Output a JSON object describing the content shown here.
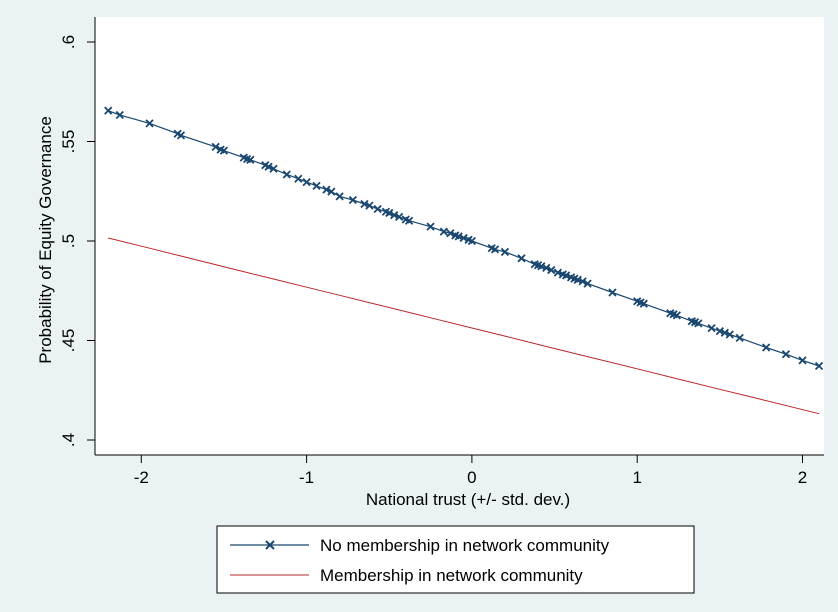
{
  "chart_data": {
    "type": "line",
    "xlabel": "National trust (+/- std. dev.)",
    "ylabel": "Probability of Equity Governance",
    "xlim": [
      -2.28,
      2.13
    ],
    "ylim": [
      0.4,
      0.6
    ],
    "x_ticks": [
      -2,
      -1,
      0,
      1,
      2
    ],
    "x_tick_labels": [
      "-2",
      "-1",
      "0",
      "1",
      "2"
    ],
    "y_ticks": [
      0.4,
      0.45,
      0.5,
      0.55,
      0.6
    ],
    "y_tick_labels": [
      ".4",
      ".45",
      ".5",
      ".55",
      ".6"
    ],
    "grid": false,
    "legend_position": "bottom",
    "series": [
      {
        "name": "No membership in network community",
        "color": "#1a476f",
        "marker": "x",
        "x": [
          -2.2,
          -2.13,
          -1.95,
          -1.78,
          -1.76,
          -1.55,
          -1.52,
          -1.5,
          -1.38,
          -1.36,
          -1.34,
          -1.25,
          -1.23,
          -1.2,
          -1.12,
          -1.05,
          -1.0,
          -0.94,
          -0.88,
          -0.85,
          -0.8,
          -0.72,
          -0.65,
          -0.62,
          -0.57,
          -0.52,
          -0.5,
          -0.47,
          -0.44,
          -0.4,
          -0.38,
          -0.25,
          -0.17,
          -0.13,
          -0.1,
          -0.08,
          -0.05,
          -0.02,
          0.0,
          0.12,
          0.14,
          0.2,
          0.3,
          0.38,
          0.4,
          0.42,
          0.45,
          0.48,
          0.52,
          0.55,
          0.57,
          0.6,
          0.62,
          0.64,
          0.67,
          0.7,
          0.85,
          1.0,
          1.02,
          1.04,
          1.2,
          1.22,
          1.24,
          1.33,
          1.35,
          1.37,
          1.45,
          1.5,
          1.53,
          1.56,
          1.62,
          1.78,
          1.9,
          2.0,
          2.1
        ],
        "y": [
          0.5655,
          0.5633,
          0.5591,
          0.5539,
          0.5531,
          0.5473,
          0.5459,
          0.5454,
          0.5419,
          0.5412,
          0.5408,
          0.5381,
          0.5373,
          0.5363,
          0.5334,
          0.5313,
          0.5296,
          0.5277,
          0.5258,
          0.5248,
          0.5224,
          0.5206,
          0.5186,
          0.5178,
          0.5161,
          0.5147,
          0.5141,
          0.513,
          0.5121,
          0.5108,
          0.5102,
          0.5072,
          0.5047,
          0.5039,
          0.5028,
          0.5023,
          0.5015,
          0.5006,
          0.5,
          0.4964,
          0.4958,
          0.4945,
          0.4913,
          0.4883,
          0.4878,
          0.4873,
          0.4865,
          0.4854,
          0.4841,
          0.4832,
          0.4827,
          0.4817,
          0.4811,
          0.4805,
          0.4797,
          0.4786,
          0.4741,
          0.4697,
          0.4691,
          0.4685,
          0.4637,
          0.4632,
          0.4626,
          0.4597,
          0.4592,
          0.4586,
          0.4562,
          0.4547,
          0.4539,
          0.453,
          0.4513,
          0.4465,
          0.4431,
          0.44,
          0.4372
        ]
      },
      {
        "name": "Membership in network community",
        "color": "#b8272b",
        "marker": "none",
        "x": [
          -2.2,
          -1.95,
          -1.7,
          -1.4,
          -1.2,
          -1.0,
          -0.8,
          -0.6,
          -0.4,
          -0.2,
          0.0,
          0.2,
          0.45,
          0.65,
          1.0,
          1.25,
          1.45,
          1.75,
          2.1
        ],
        "y": [
          0.5015,
          0.4964,
          0.4912,
          0.485,
          0.4809,
          0.4768,
          0.4727,
          0.4686,
          0.4645,
          0.4604,
          0.4563,
          0.4522,
          0.447,
          0.4429,
          0.4358,
          0.4306,
          0.4265,
          0.4204,
          0.4132
        ]
      }
    ]
  }
}
